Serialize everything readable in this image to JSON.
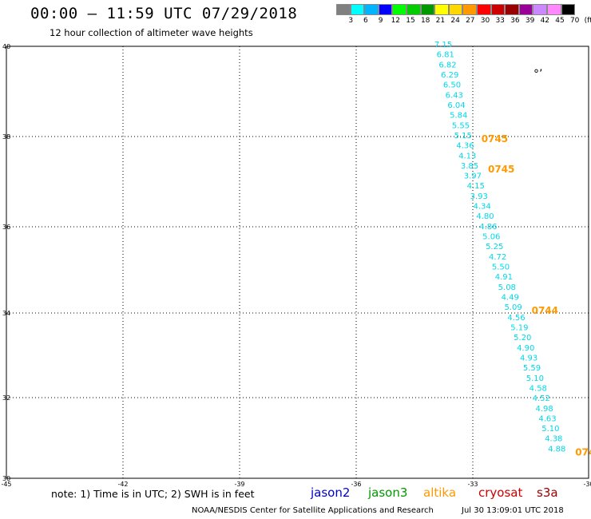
{
  "header": {
    "title": "00:00 – 11:59 UTC 07/29/2018",
    "subtitle": "12 hour collection of altimeter wave heights"
  },
  "scale": {
    "colors": [
      "#808080",
      "#00ffff",
      "#00b4ff",
      "#0000ff",
      "#00ff00",
      "#00cc00",
      "#009900",
      "#ffff00",
      "#ffd700",
      "#ff9900",
      "#ff0000",
      "#cc0000",
      "#990000",
      "#990099",
      "#cc88ff",
      "#ff88ff",
      "#000000"
    ],
    "labels": [
      "3",
      "6",
      "9",
      "12",
      "15",
      "18",
      "21",
      "24",
      "27",
      "30",
      "33",
      "36",
      "39",
      "42",
      "45",
      "70",
      "(ft)"
    ]
  },
  "map": {
    "lat_ticks": [
      "40",
      "38",
      "36",
      "34",
      "32",
      "30"
    ],
    "lon_ticks": [
      "-45",
      "-42",
      "-39",
      "-36",
      "-33",
      "-30"
    ],
    "wave_color": "#00d8e8",
    "stamp_color": "#ff9900",
    "island_glyph": "°’",
    "wave_heights": [
      "7.15",
      "6.81",
      "6.82",
      "6.29",
      "6.50",
      "6.43",
      "6.04",
      "5.84",
      "5.55",
      "5.15",
      "4.36",
      "4.13",
      "3.85",
      "3.97",
      "4.15",
      "3.93",
      "4.34",
      "4.80",
      "4.86",
      "5.06",
      "5.25",
      "4.72",
      "5.50",
      "4.91",
      "5.08",
      "4.49",
      "5.09",
      "4.56",
      "5.19",
      "5.20",
      "4.90",
      "4.93",
      "5.59",
      "5.10",
      "4.58",
      "4.52",
      "4.98",
      "4.63",
      "5.10",
      "4.38",
      "4.88"
    ],
    "time_stamps": [
      {
        "label": "0745",
        "row": 9
      },
      {
        "label": "0745",
        "row": 12
      },
      {
        "label": "0744",
        "row": 26
      },
      {
        "label": "074",
        "row": 40
      }
    ]
  },
  "note": "note: 1) Time is in UTC; 2) SWH is in feet",
  "satellites": [
    {
      "name": "jason2",
      "color": "#0000cc"
    },
    {
      "name": "jason3",
      "color": "#009900"
    },
    {
      "name": "altika",
      "color": "#ff9900"
    },
    {
      "name": "cryosat",
      "color": "#cc0000"
    },
    {
      "name": "s3a",
      "color": "#990000"
    }
  ],
  "footer": {
    "credit": "NOAA/NESDIS Center for Satellite Applications and Research",
    "timestamp": "Jul 30 13:09:01 UTC 2018"
  }
}
